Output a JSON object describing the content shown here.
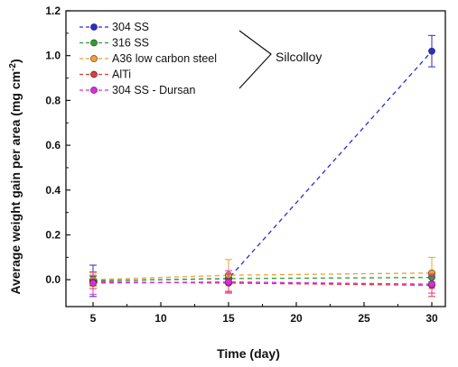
{
  "chart_data": {
    "type": "line",
    "xlabel": "Time (day)",
    "ylabel_main": "Average weight gain per area (mg cm",
    "ylabel_sup": "-2",
    "ylabel_close": ")",
    "xlim": [
      3,
      31
    ],
    "ylim": [
      -0.12,
      1.2
    ],
    "xticks": [
      5,
      10,
      15,
      20,
      25,
      30
    ],
    "yticks": [
      0.0,
      0.2,
      0.4,
      0.6,
      0.8,
      1.0,
      1.2
    ],
    "ytick_labels": [
      "0.0",
      "0.2",
      "0.4",
      "0.6",
      "0.8",
      "1.0",
      "1.2"
    ],
    "xtick_labels": [
      "5",
      "10",
      "15",
      "20",
      "25",
      "30"
    ],
    "series": [
      {
        "name": "304 SS",
        "color": "#2b2bd6",
        "x": [
          5,
          15,
          30
        ],
        "y": [
          -0.005,
          0.005,
          1.02
        ],
        "err": [
          0.07,
          0.02,
          0.07
        ]
      },
      {
        "name": "316 SS",
        "color": "#2e9e2e",
        "x": [
          5,
          15,
          30
        ],
        "y": [
          -0.005,
          0.005,
          0.01
        ],
        "err": [
          0.02,
          0.02,
          0.02
        ]
      },
      {
        "name": "A36 low carbon steel",
        "color": "#f0a030",
        "x": [
          5,
          15,
          30
        ],
        "y": [
          0.0,
          0.02,
          0.03
        ],
        "err": [
          0.03,
          0.07,
          0.07
        ]
      },
      {
        "name": "AlTi",
        "color": "#e03a3a",
        "x": [
          5,
          15,
          30
        ],
        "y": [
          -0.01,
          -0.015,
          -0.025
        ],
        "err": [
          0.03,
          0.04,
          0.05
        ]
      },
      {
        "name": "304 SS - Dursan",
        "color": "#e028e0",
        "x": [
          5,
          15,
          30
        ],
        "y": [
          -0.015,
          -0.01,
          -0.02
        ],
        "err": [
          0.05,
          0.05,
          0.04
        ]
      }
    ],
    "annotation": "Silcolloy",
    "legend_placement": "top-left"
  }
}
